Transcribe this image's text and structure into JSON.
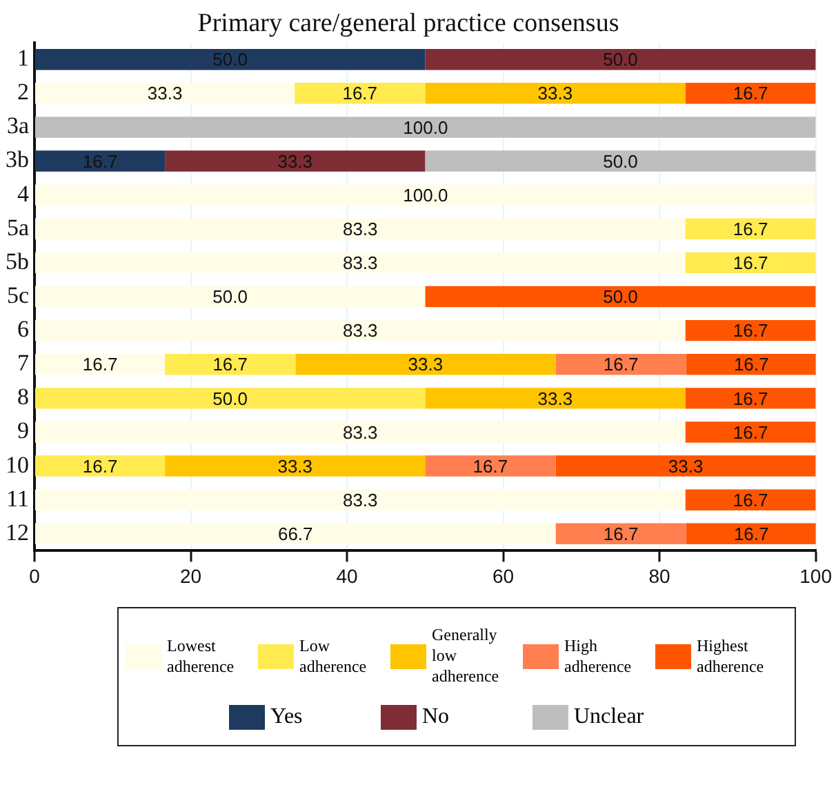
{
  "chart_data": {
    "type": "bar",
    "orientation": "horizontal",
    "stacked": true,
    "title": "Primary care/general practice consensus",
    "categories": [
      "1",
      "2",
      "3a",
      "3b",
      "4",
      "5a",
      "5b",
      "5c",
      "6",
      "7",
      "8",
      "9",
      "10",
      "11",
      "12"
    ],
    "series": [
      {
        "name": "Lowest adherence",
        "color": "#fffde8",
        "values": [
          null,
          33.3,
          null,
          null,
          100,
          83.3,
          83.3,
          50,
          83.3,
          16.7,
          null,
          83.3,
          null,
          83.3,
          66.7
        ],
        "value_labels": [
          null,
          "33.3",
          null,
          null,
          "100.0",
          "83.3",
          "83.3",
          "50.0",
          "83.3",
          "16.7",
          null,
          "83.3",
          null,
          "83.3",
          "66.7"
        ]
      },
      {
        "name": "Low adherence",
        "color": "#ffeb50",
        "values": [
          null,
          16.7,
          null,
          null,
          null,
          16.7,
          16.7,
          null,
          null,
          16.7,
          50,
          null,
          16.7,
          null,
          null
        ],
        "value_labels": [
          null,
          "16.7",
          null,
          null,
          null,
          "16.7",
          "16.7",
          null,
          null,
          "16.7",
          "50.0",
          null,
          "16.7",
          null,
          null
        ]
      },
      {
        "name": "Generally low adherence",
        "color": "#ffc400",
        "values": [
          null,
          33.3,
          null,
          null,
          null,
          null,
          null,
          null,
          null,
          33.3,
          33.3,
          null,
          33.3,
          null,
          null
        ],
        "value_labels": [
          null,
          "33.3",
          null,
          null,
          null,
          null,
          null,
          null,
          null,
          "33.3",
          "33.3",
          null,
          "33.3",
          null,
          null
        ]
      },
      {
        "name": "High adherence",
        "color": "#ff7f50",
        "values": [
          null,
          null,
          null,
          null,
          null,
          null,
          null,
          null,
          null,
          16.7,
          null,
          null,
          16.7,
          null,
          16.7
        ],
        "value_labels": [
          null,
          null,
          null,
          null,
          null,
          null,
          null,
          null,
          null,
          "16.7",
          null,
          null,
          "16.7",
          null,
          "16.7"
        ]
      },
      {
        "name": "Highest adherence",
        "color": "#ff5500",
        "values": [
          null,
          16.7,
          null,
          null,
          null,
          null,
          null,
          50,
          16.7,
          16.7,
          16.7,
          16.7,
          33.3,
          16.7,
          16.7
        ],
        "value_labels": [
          null,
          "16.7",
          null,
          null,
          null,
          null,
          null,
          "50.0",
          "16.7",
          "16.7",
          "16.7",
          "16.7",
          "33.3",
          "16.7",
          "16.7"
        ]
      },
      {
        "name": "Yes",
        "color": "#1e3a5f",
        "values": [
          50,
          null,
          null,
          16.7,
          null,
          null,
          null,
          null,
          null,
          null,
          null,
          null,
          null,
          null,
          null
        ],
        "value_labels": [
          "50.0",
          null,
          null,
          "16.7",
          null,
          null,
          null,
          null,
          null,
          null,
          null,
          null,
          null,
          null,
          null
        ]
      },
      {
        "name": "No",
        "color": "#7f2d35",
        "values": [
          50,
          null,
          null,
          33.3,
          null,
          null,
          null,
          null,
          null,
          null,
          null,
          null,
          null,
          null,
          null
        ],
        "value_labels": [
          "50.0",
          null,
          null,
          "33.3",
          null,
          null,
          null,
          null,
          null,
          null,
          null,
          null,
          null,
          null,
          null
        ]
      },
      {
        "name": "Unclear",
        "color": "#bebebe",
        "values": [
          null,
          null,
          100,
          50,
          null,
          null,
          null,
          null,
          null,
          null,
          null,
          null,
          null,
          null,
          null
        ],
        "value_labels": [
          null,
          null,
          "100.0",
          "50.0",
          null,
          null,
          null,
          null,
          null,
          null,
          null,
          null,
          null,
          null,
          null
        ]
      }
    ],
    "xlim": [
      0,
      100
    ],
    "xticks": [
      0,
      20,
      40,
      60,
      80,
      100
    ],
    "grid": "x",
    "legend": "bottom"
  }
}
